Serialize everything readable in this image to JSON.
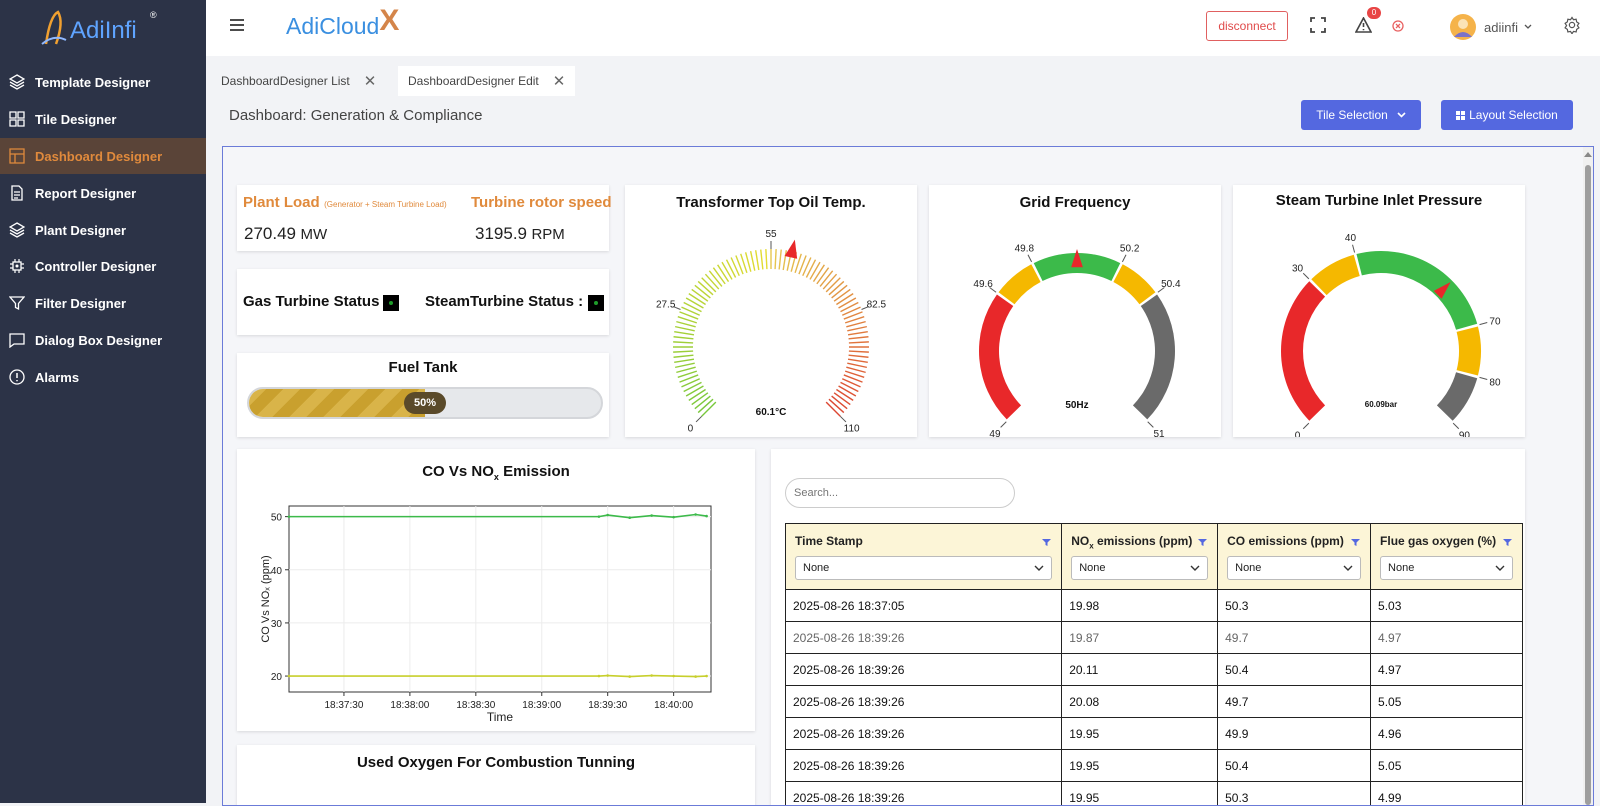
{
  "sidebar": {
    "logo_text": "AdiInfi",
    "logo_reg": "®",
    "items": [
      {
        "label": "Template Designer",
        "icon": "layers-icon"
      },
      {
        "label": "Tile Designer",
        "icon": "grid-icon"
      },
      {
        "label": "Dashboard Designer",
        "icon": "dashboard-icon",
        "active": true
      },
      {
        "label": "Report Designer",
        "icon": "document-icon"
      },
      {
        "label": "Plant Designer",
        "icon": "layers-icon"
      },
      {
        "label": "Controller Designer",
        "icon": "chip-icon"
      },
      {
        "label": "Filter Designer",
        "icon": "filter-icon"
      },
      {
        "label": "Dialog Box Designer",
        "icon": "chat-icon"
      },
      {
        "label": "Alarms",
        "icon": "alert-circle-icon"
      }
    ]
  },
  "header": {
    "brand": "AdiCloud",
    "brand_x": "X",
    "disconnect": "disconnect",
    "alarm_count": "0",
    "user": "adiinfi"
  },
  "tabs": [
    {
      "label": "DashboardDesigner List"
    },
    {
      "label": "DashboardDesigner Edit",
      "active": true
    }
  ],
  "page": {
    "title": "Dashboard: Generation & Compliance",
    "tile_selection": "Tile Selection",
    "layout_selection": "Layout Selection"
  },
  "plant_load": {
    "label": "Plant Load",
    "sub": "(Generator + Steam Turbine Load)",
    "value": "270.49",
    "unit": "MW",
    "speed_label": "Turbine rotor speed",
    "speed_value": "3195.9",
    "speed_unit": "RPM"
  },
  "status": {
    "gas": "Gas Turbine Status :",
    "steam": "SteamTurbine Status :"
  },
  "fuel": {
    "title": "Fuel Tank",
    "level": 0.5,
    "label": "50%"
  },
  "gauges": {
    "oil": {
      "title": "Transformer Top Oil Temp.",
      "ticks": [
        "0",
        "27.5",
        "55",
        "82.5",
        "110"
      ],
      "value": 60.1,
      "readout": "60.1°C",
      "min": 0,
      "max": 110
    },
    "freq": {
      "title": "Grid Frequency",
      "ticks": [
        "49",
        "49.6",
        "49.8",
        "50.2",
        "50.4",
        "51"
      ],
      "value": 50.0,
      "readout": "50Hz",
      "min": 49,
      "max": 51
    },
    "steam": {
      "title": "Steam Turbine Inlet Pressure",
      "ticks": [
        "0",
        "30",
        "40",
        "70",
        "80",
        "90"
      ],
      "value": 60.09,
      "readout": "60.09bar",
      "min": 0,
      "max": 90
    }
  },
  "colors": {
    "red": "#e8282a",
    "yellow": "#f5b800",
    "green": "#3cba4a",
    "gray": "#6a6a6a",
    "accent": "#e08a3c",
    "primary": "#5468e0"
  },
  "emission_chart": {
    "title_pre": "CO Vs NO",
    "title_sub": "x",
    "title_post": " Emission",
    "ylabel": "CO Vs NOₓ (ppm)",
    "xlabel": "Time"
  },
  "chart_data": {
    "type": "line",
    "title": "CO Vs NOₓ Emission",
    "xlabel": "Time",
    "ylabel": "CO Vs NOₓ (ppm)",
    "x_ticks": [
      "18:37:30",
      "18:38:00",
      "18:38:30",
      "18:39:00",
      "18:39:30",
      "18:40:00"
    ],
    "y_ticks": [
      20,
      30,
      40,
      50
    ],
    "ylim": [
      17,
      52
    ],
    "grid": true,
    "series": [
      {
        "color": "#3cba4a",
        "x": [
          "18:37:05",
          "18:39:26",
          "18:39:30",
          "18:39:40",
          "18:39:50",
          "18:40:00",
          "18:40:10",
          "18:40:15"
        ],
        "values": [
          50.0,
          50.0,
          50.3,
          49.8,
          50.2,
          49.9,
          50.4,
          50.1
        ]
      },
      {
        "color": "#c7cf2c",
        "x": [
          "18:37:05",
          "18:39:26",
          "18:39:30",
          "18:39:40",
          "18:39:50",
          "18:40:00",
          "18:40:10",
          "18:40:15"
        ],
        "values": [
          20.0,
          20.0,
          20.1,
          19.9,
          20.1,
          20.0,
          19.9,
          20.0
        ]
      }
    ]
  },
  "table": {
    "search_placeholder": "Search...",
    "columns": [
      {
        "label": "Time Stamp",
        "filter": "None"
      },
      {
        "label_pre": "NO",
        "label_sub": "x",
        "label_post": " emissions (ppm)",
        "filter": "None"
      },
      {
        "label": "CO emissions (ppm)",
        "filter": "None"
      },
      {
        "label": "Flue gas oxygen (%)",
        "filter": "None"
      }
    ],
    "rows": [
      [
        "2025-08-26 18:37:05",
        "19.98",
        "50.3",
        "5.03"
      ],
      [
        "2025-08-26 18:39:26",
        "19.87",
        "49.7",
        "4.97"
      ],
      [
        "2025-08-26 18:39:26",
        "20.11",
        "50.4",
        "4.97"
      ],
      [
        "2025-08-26 18:39:26",
        "20.08",
        "49.7",
        "5.05"
      ],
      [
        "2025-08-26 18:39:26",
        "19.95",
        "49.9",
        "4.96"
      ],
      [
        "2025-08-26 18:39:26",
        "19.95",
        "50.4",
        "5.05"
      ],
      [
        "2025-08-26 18:39:26",
        "19.95",
        "50.3",
        "4.99"
      ]
    ]
  },
  "oxygen": {
    "title": "Used Oxygen For Combustion Tunning"
  }
}
